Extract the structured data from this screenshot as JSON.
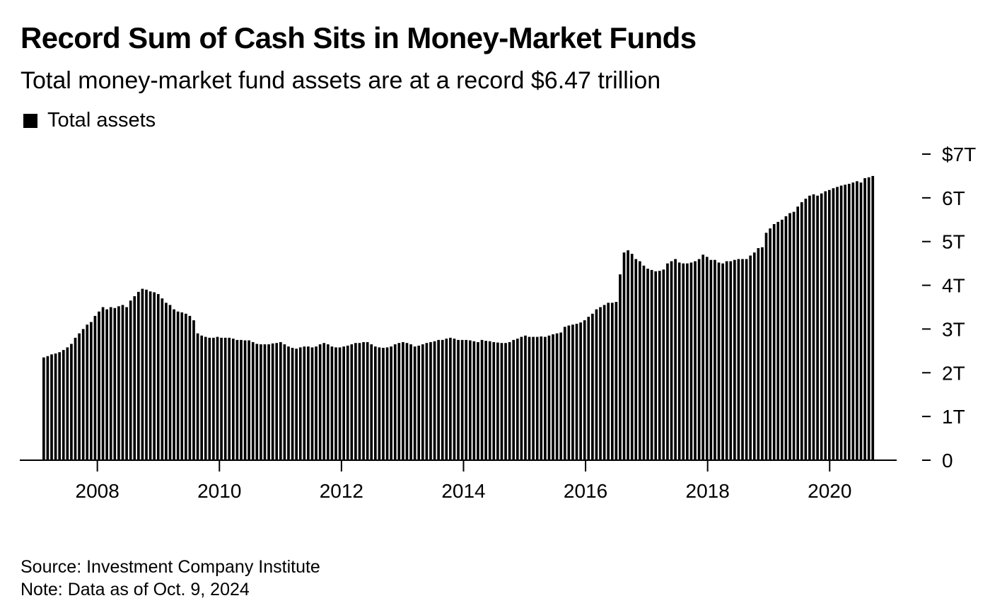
{
  "chart_data": {
    "type": "bar",
    "title": "Record Sum of Cash Sits in Money-Market Funds",
    "subtitle": "Total money-market fund assets are at a record $6.47 trillion",
    "legend": [
      "Total assets"
    ],
    "legend_position": "top-left",
    "x_start": 2007.1,
    "x_end": 2020.75,
    "x_ticks": [
      2008,
      2010,
      2012,
      2014,
      2016,
      2018,
      2020
    ],
    "x_tick_labels": [
      "2008",
      "2010",
      "2012",
      "2014",
      "2016",
      "2018",
      "2020"
    ],
    "y_ticks": [
      0,
      1,
      2,
      3,
      4,
      5,
      6,
      7
    ],
    "y_tick_labels": [
      "0",
      "1T",
      "2T",
      "3T",
      "4T",
      "5T",
      "6T",
      "$7T"
    ],
    "ylim": [
      0,
      7
    ],
    "y_axis_position": "right",
    "grid": false,
    "series": [
      {
        "name": "Total assets",
        "values": [
          2.35,
          2.38,
          2.42,
          2.44,
          2.47,
          2.52,
          2.58,
          2.66,
          2.8,
          2.9,
          3.0,
          3.1,
          3.16,
          3.3,
          3.4,
          3.5,
          3.45,
          3.5,
          3.48,
          3.52,
          3.55,
          3.5,
          3.65,
          3.75,
          3.85,
          3.92,
          3.9,
          3.86,
          3.84,
          3.8,
          3.7,
          3.6,
          3.55,
          3.45,
          3.4,
          3.38,
          3.35,
          3.3,
          3.2,
          2.9,
          2.85,
          2.82,
          2.8,
          2.8,
          2.82,
          2.8,
          2.8,
          2.8,
          2.78,
          2.75,
          2.75,
          2.74,
          2.74,
          2.7,
          2.66,
          2.65,
          2.65,
          2.65,
          2.67,
          2.68,
          2.7,
          2.65,
          2.6,
          2.57,
          2.55,
          2.58,
          2.6,
          2.6,
          2.58,
          2.6,
          2.65,
          2.68,
          2.65,
          2.6,
          2.58,
          2.58,
          2.6,
          2.62,
          2.65,
          2.68,
          2.68,
          2.7,
          2.7,
          2.65,
          2.6,
          2.58,
          2.57,
          2.58,
          2.6,
          2.65,
          2.68,
          2.7,
          2.68,
          2.65,
          2.6,
          2.62,
          2.65,
          2.68,
          2.7,
          2.72,
          2.75,
          2.75,
          2.78,
          2.8,
          2.78,
          2.75,
          2.75,
          2.75,
          2.74,
          2.72,
          2.7,
          2.75,
          2.73,
          2.72,
          2.7,
          2.69,
          2.68,
          2.68,
          2.7,
          2.75,
          2.78,
          2.82,
          2.85,
          2.82,
          2.82,
          2.82,
          2.83,
          2.82,
          2.85,
          2.88,
          2.9,
          2.92,
          3.05,
          3.08,
          3.1,
          3.12,
          3.15,
          3.2,
          3.28,
          3.35,
          3.45,
          3.5,
          3.55,
          3.6,
          3.6,
          3.62,
          4.25,
          4.75,
          4.8,
          4.72,
          4.6,
          4.55,
          4.45,
          4.38,
          4.35,
          4.32,
          4.33,
          4.36,
          4.5,
          4.55,
          4.6,
          4.52,
          4.5,
          4.5,
          4.52,
          4.55,
          4.6,
          4.7,
          4.65,
          4.58,
          4.58,
          4.52,
          4.5,
          4.55,
          4.55,
          4.58,
          4.6,
          4.6,
          4.6,
          4.68,
          4.75,
          4.85,
          4.87,
          5.2,
          5.3,
          5.4,
          5.45,
          5.5,
          5.58,
          5.65,
          5.68,
          5.8,
          5.9,
          5.98,
          6.05,
          6.08,
          6.05,
          6.1,
          6.15,
          6.18,
          6.22,
          6.25,
          6.28,
          6.3,
          6.32,
          6.35,
          6.38,
          6.35,
          6.45,
          6.47,
          6.5
        ]
      }
    ]
  },
  "footer": {
    "source": "Source: Investment Company Institute",
    "note": "Note: Data as of Oct. 9, 2024"
  }
}
